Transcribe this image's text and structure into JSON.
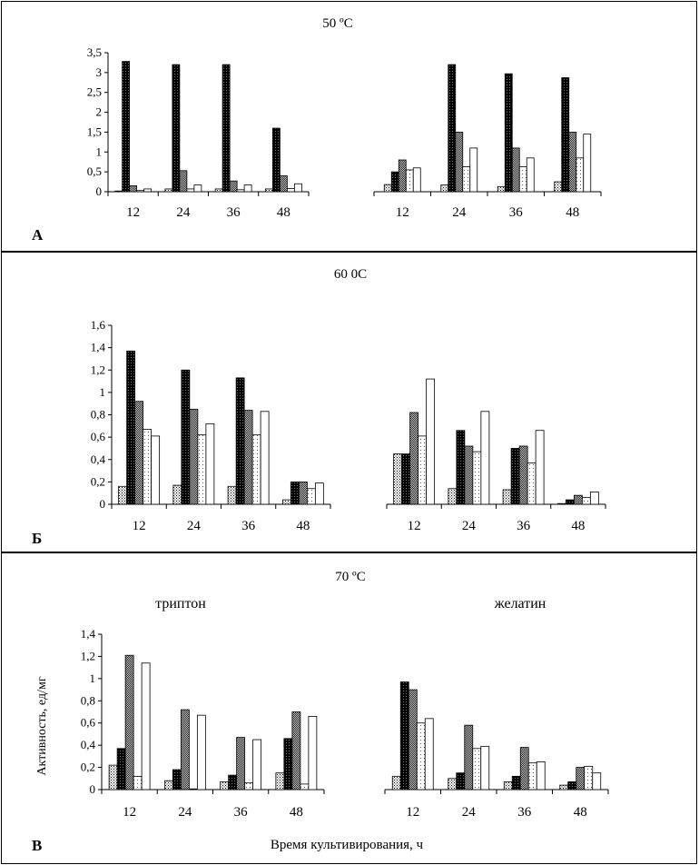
{
  "chart_data": [
    {
      "type": "bar",
      "panel_label": "А",
      "title": "50 ºС",
      "groups": [
        {
          "categories": [
            "12",
            "24",
            "36",
            "48"
          ],
          "series": [
            {
              "style": "dotted",
              "values": [
                0.0,
                0.07,
                0.07,
                0.07
              ]
            },
            {
              "style": "black",
              "values": [
                3.28,
                3.2,
                3.2,
                1.6
              ]
            },
            {
              "style": "gray",
              "values": [
                0.15,
                0.53,
                0.27,
                0.4
              ]
            },
            {
              "style": "light-dotted",
              "values": [
                0.03,
                0.07,
                0.05,
                0.08
              ]
            },
            {
              "style": "white",
              "values": [
                0.07,
                0.17,
                0.17,
                0.2
              ]
            }
          ]
        },
        {
          "categories": [
            "12",
            "24",
            "36",
            "48"
          ],
          "series": [
            {
              "style": "dotted",
              "values": [
                0.18,
                0.17,
                0.13,
                0.25
              ]
            },
            {
              "style": "black",
              "values": [
                0.5,
                3.2,
                2.97,
                2.87
              ]
            },
            {
              "style": "gray",
              "values": [
                0.8,
                1.5,
                1.1,
                1.5
              ]
            },
            {
              "style": "light-dotted",
              "values": [
                0.55,
                0.63,
                0.63,
                0.85
              ]
            },
            {
              "style": "white",
              "values": [
                0.6,
                1.1,
                0.85,
                1.45
              ]
            }
          ]
        }
      ],
      "ylim": [
        0,
        3.5
      ],
      "yticks": [
        "0",
        "0,5",
        "1",
        "1,5",
        "2",
        "2,5",
        "3",
        "3,5"
      ]
    },
    {
      "type": "bar",
      "panel_label": "Б",
      "title": "60 0С",
      "groups": [
        {
          "categories": [
            "12",
            "24",
            "36",
            "48"
          ],
          "series": [
            {
              "style": "dotted",
              "values": [
                0.16,
                0.17,
                0.16,
                0.04
              ]
            },
            {
              "style": "black",
              "values": [
                1.37,
                1.2,
                1.13,
                0.2
              ]
            },
            {
              "style": "gray",
              "values": [
                0.92,
                0.85,
                0.84,
                0.2
              ]
            },
            {
              "style": "light-dotted",
              "values": [
                0.67,
                0.62,
                0.62,
                0.14
              ]
            },
            {
              "style": "white",
              "values": [
                0.61,
                0.72,
                0.83,
                0.19
              ]
            }
          ]
        },
        {
          "categories": [
            "12",
            "24",
            "36",
            "48"
          ],
          "series": [
            {
              "style": "dotted",
              "values": [
                0.45,
                0.14,
                0.13,
                0.0
              ]
            },
            {
              "style": "black",
              "values": [
                0.45,
                0.66,
                0.5,
                0.04
              ]
            },
            {
              "style": "gray",
              "values": [
                0.82,
                0.52,
                0.52,
                0.08
              ]
            },
            {
              "style": "light-dotted",
              "values": [
                0.61,
                0.47,
                0.37,
                0.06
              ]
            },
            {
              "style": "white",
              "values": [
                1.12,
                0.83,
                0.66,
                0.11
              ]
            }
          ]
        }
      ],
      "ylim": [
        0,
        1.6
      ],
      "yticks": [
        "0",
        "0,2",
        "0,4",
        "0,6",
        "0,8",
        "1",
        "1,2",
        "1,4",
        "1,6"
      ]
    },
    {
      "type": "bar",
      "panel_label": "В",
      "title": "70 ºС",
      "group_labels": [
        "триптон",
        "желатин"
      ],
      "ylabel": "Активность, ед/мг",
      "xlabel": "Время культивирования, ч",
      "groups": [
        {
          "categories": [
            "12",
            "24",
            "36",
            "48"
          ],
          "series": [
            {
              "style": "dotted",
              "values": [
                0.22,
                0.08,
                0.07,
                0.15
              ]
            },
            {
              "style": "black",
              "values": [
                0.37,
                0.18,
                0.13,
                0.46
              ]
            },
            {
              "style": "gray",
              "values": [
                1.21,
                0.72,
                0.47,
                0.7
              ]
            },
            {
              "style": "light-dotted",
              "values": [
                0.12,
                0.0,
                0.06,
                0.05
              ]
            },
            {
              "style": "white",
              "values": [
                1.14,
                0.67,
                0.45,
                0.66
              ]
            }
          ]
        },
        {
          "categories": [
            "12",
            "24",
            "36",
            "48"
          ],
          "series": [
            {
              "style": "dotted",
              "values": [
                0.12,
                0.1,
                0.07,
                0.04
              ]
            },
            {
              "style": "black",
              "values": [
                0.97,
                0.15,
                0.12,
                0.07
              ]
            },
            {
              "style": "gray",
              "values": [
                0.9,
                0.58,
                0.38,
                0.2
              ]
            },
            {
              "style": "light-dotted",
              "values": [
                0.6,
                0.37,
                0.24,
                0.21
              ]
            },
            {
              "style": "white",
              "values": [
                0.64,
                0.39,
                0.25,
                0.15
              ]
            }
          ]
        }
      ],
      "ylim": [
        0,
        1.4
      ],
      "yticks": [
        "0",
        "0,2",
        "0,4",
        "0,6",
        "0,8",
        "1",
        "1,2",
        "1,4"
      ]
    }
  ]
}
